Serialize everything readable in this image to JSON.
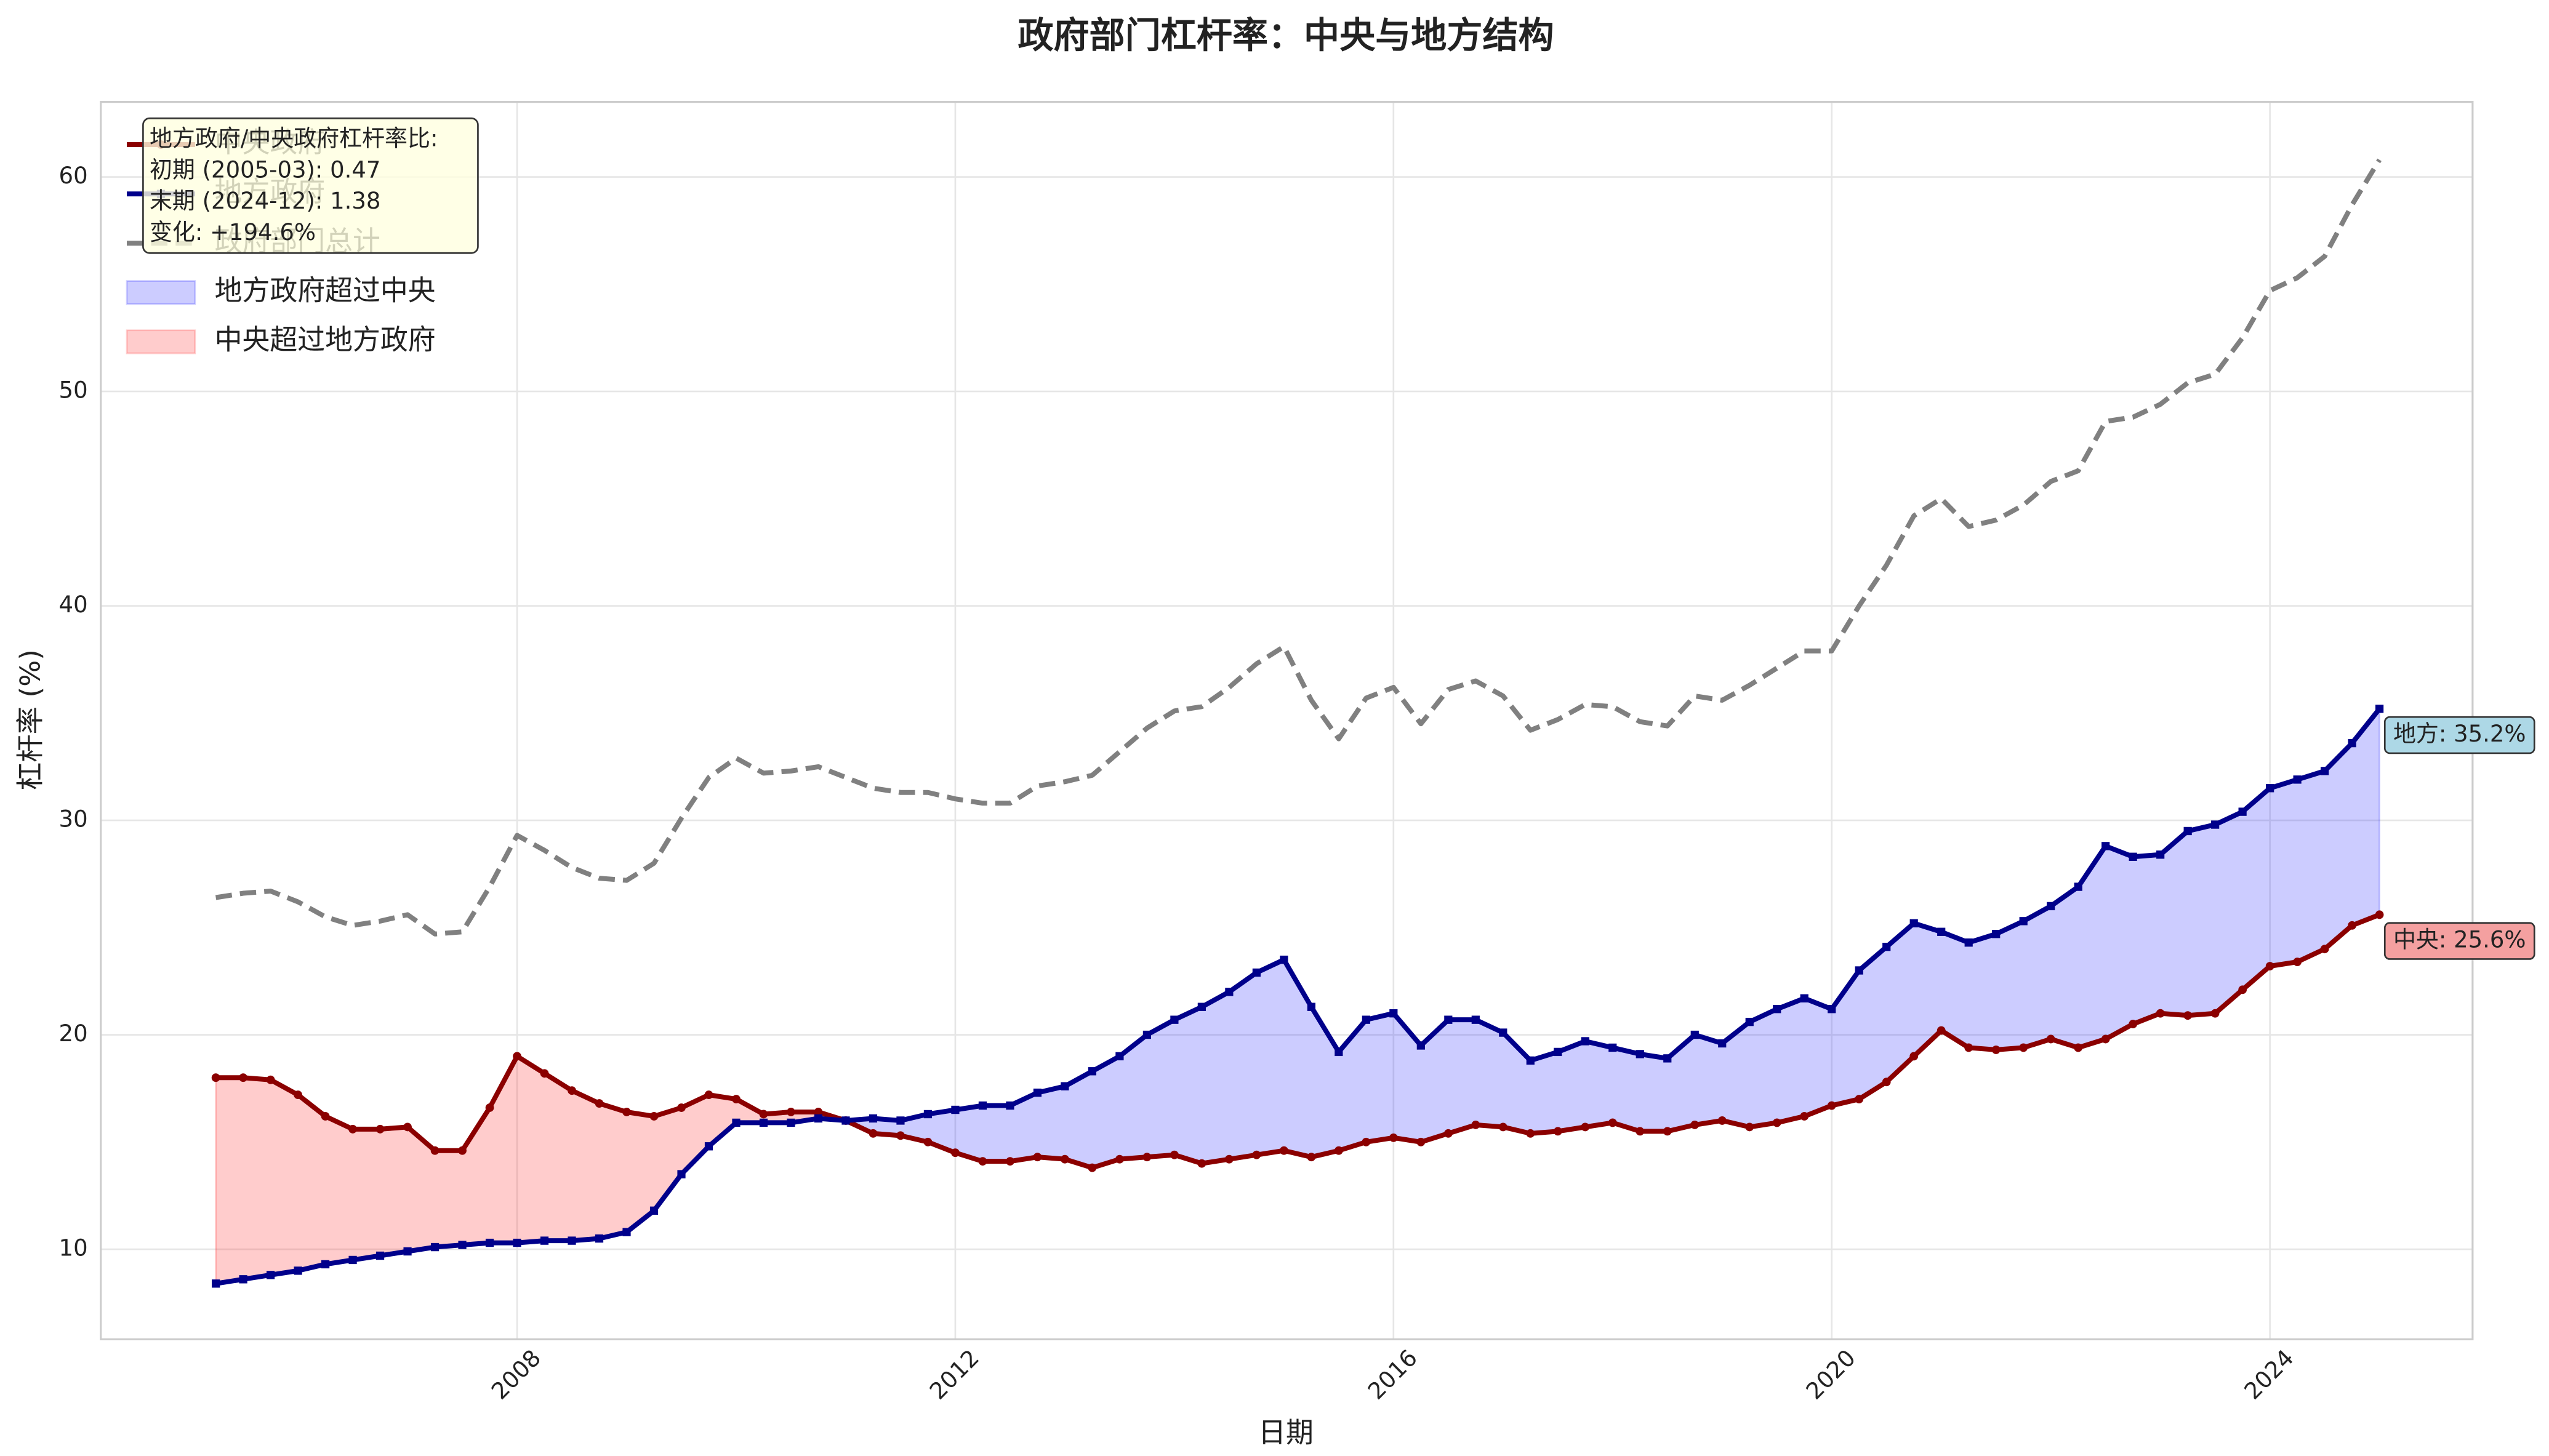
{
  "chart_data": {
    "type": "line",
    "title": "政府部门杠杆率：中央与地方结构",
    "xlabel": "日期",
    "ylabel": "杠杆率 (%)",
    "x": [
      "2005-03",
      "2005-06",
      "2005-09",
      "2005-12",
      "2006-03",
      "2006-06",
      "2006-09",
      "2006-12",
      "2007-03",
      "2007-06",
      "2007-09",
      "2007-12",
      "2008-03",
      "2008-06",
      "2008-09",
      "2008-12",
      "2009-03",
      "2009-06",
      "2009-09",
      "2009-12",
      "2010-03",
      "2010-06",
      "2010-09",
      "2010-12",
      "2011-03",
      "2011-06",
      "2011-09",
      "2011-12",
      "2012-03",
      "2012-06",
      "2012-09",
      "2012-12",
      "2013-03",
      "2013-06",
      "2013-09",
      "2013-12",
      "2014-03",
      "2014-06",
      "2014-09",
      "2014-12",
      "2015-03",
      "2015-06",
      "2015-09",
      "2015-12",
      "2016-03",
      "2016-06",
      "2016-09",
      "2016-12",
      "2017-03",
      "2017-06",
      "2017-09",
      "2017-12",
      "2018-03",
      "2018-06",
      "2018-09",
      "2018-12",
      "2019-03",
      "2019-06",
      "2019-09",
      "2019-12",
      "2020-03",
      "2020-06",
      "2020-09",
      "2020-12",
      "2021-03",
      "2021-06",
      "2021-09",
      "2021-12",
      "2022-03",
      "2022-06",
      "2022-09",
      "2022-12",
      "2023-03",
      "2023-06",
      "2023-09",
      "2023-12",
      "2024-03",
      "2024-06",
      "2024-09",
      "2024-12"
    ],
    "series": [
      {
        "name": "中央政府",
        "color": "#8b0000",
        "marker": "circle",
        "values": [
          18.0,
          18.0,
          17.9,
          17.2,
          16.2,
          15.6,
          15.6,
          15.7,
          14.6,
          14.6,
          16.6,
          19.0,
          18.2,
          17.4,
          16.8,
          16.4,
          16.2,
          16.6,
          17.2,
          17.0,
          16.3,
          16.4,
          16.4,
          16.0,
          15.4,
          15.3,
          15.0,
          14.5,
          14.1,
          14.1,
          14.3,
          14.2,
          13.8,
          14.2,
          14.3,
          14.4,
          14.0,
          14.2,
          14.4,
          14.6,
          14.3,
          14.6,
          15.0,
          15.2,
          15.0,
          15.4,
          15.8,
          15.7,
          15.4,
          15.5,
          15.7,
          15.9,
          15.5,
          15.5,
          15.8,
          16.0,
          15.7,
          15.9,
          16.2,
          16.7,
          17.0,
          17.8,
          19.0,
          20.2,
          19.4,
          19.3,
          19.4,
          19.8,
          19.4,
          19.8,
          20.5,
          21.0,
          20.9,
          21.0,
          22.1,
          23.2,
          23.4,
          24.0,
          25.1,
          25.6
        ]
      },
      {
        "name": "地方政府",
        "color": "#00008b",
        "marker": "square",
        "values": [
          8.4,
          8.6,
          8.8,
          9.0,
          9.3,
          9.5,
          9.7,
          9.9,
          10.1,
          10.2,
          10.3,
          10.3,
          10.4,
          10.4,
          10.5,
          10.8,
          11.8,
          13.5,
          14.8,
          15.9,
          15.9,
          15.9,
          16.1,
          16.0,
          16.1,
          16.0,
          16.3,
          16.5,
          16.7,
          16.7,
          17.3,
          17.6,
          18.3,
          19.0,
          20.0,
          20.7,
          21.3,
          22.0,
          22.9,
          23.5,
          21.3,
          19.2,
          20.7,
          21.0,
          19.5,
          20.7,
          20.7,
          20.1,
          18.8,
          19.2,
          19.7,
          19.4,
          19.1,
          18.9,
          20.0,
          19.6,
          20.6,
          21.2,
          21.7,
          21.2,
          23.0,
          24.1,
          25.2,
          24.8,
          24.3,
          24.7,
          25.3,
          26.0,
          26.9,
          28.8,
          28.3,
          28.4,
          29.5,
          29.8,
          30.4,
          31.5,
          31.9,
          32.3,
          33.6,
          35.2
        ]
      },
      {
        "name": "政府部门总计",
        "color": "#808080",
        "dashed": true,
        "values": [
          26.4,
          26.6,
          26.7,
          26.2,
          25.5,
          25.1,
          25.3,
          25.6,
          24.7,
          24.8,
          26.9,
          29.3,
          28.6,
          27.8,
          27.3,
          27.2,
          28.0,
          30.1,
          32.0,
          32.9,
          32.2,
          32.3,
          32.5,
          32.0,
          31.5,
          31.3,
          31.3,
          31.0,
          30.8,
          30.8,
          31.6,
          31.8,
          32.1,
          33.2,
          34.3,
          35.1,
          35.3,
          36.2,
          37.3,
          38.1,
          35.6,
          33.8,
          35.7,
          36.2,
          34.5,
          36.1,
          36.5,
          35.8,
          34.2,
          34.7,
          35.4,
          35.3,
          34.6,
          34.4,
          35.8,
          35.6,
          36.3,
          37.1,
          37.9,
          37.9,
          40.0,
          41.9,
          44.2,
          45.0,
          43.7,
          44.0,
          44.7,
          45.8,
          46.3,
          48.6,
          48.8,
          49.4,
          50.4,
          50.8,
          52.5,
          54.7,
          55.3,
          56.3,
          58.7,
          60.8
        ]
      }
    ],
    "fills": [
      {
        "name": "地方政府超过中央",
        "color": "#0000ff"
      },
      {
        "name": "中央超过地方政府",
        "color": "#ff0000"
      }
    ],
    "end_labels": [
      {
        "series": 1,
        "text": "地方: 35.2%",
        "color": "#add8e6"
      },
      {
        "series": 0,
        "text": "中央: 25.6%",
        "color": "#f4a0a0"
      }
    ],
    "annotation": [
      "地方政府/中央政府杠杆率比:",
      "初期 (2005-03): 0.47",
      "末期 (2024-12): 1.38",
      "变化: +194.6%"
    ],
    "xlim": [
      2004.2,
      2025.85
    ],
    "xticks": [
      2008,
      2012,
      2016,
      2020,
      2024
    ],
    "ylim": [
      5.8,
      63.5
    ],
    "yticks": [
      10,
      20,
      30,
      40,
      50,
      60
    ],
    "grid": true,
    "legend": "upper left"
  }
}
